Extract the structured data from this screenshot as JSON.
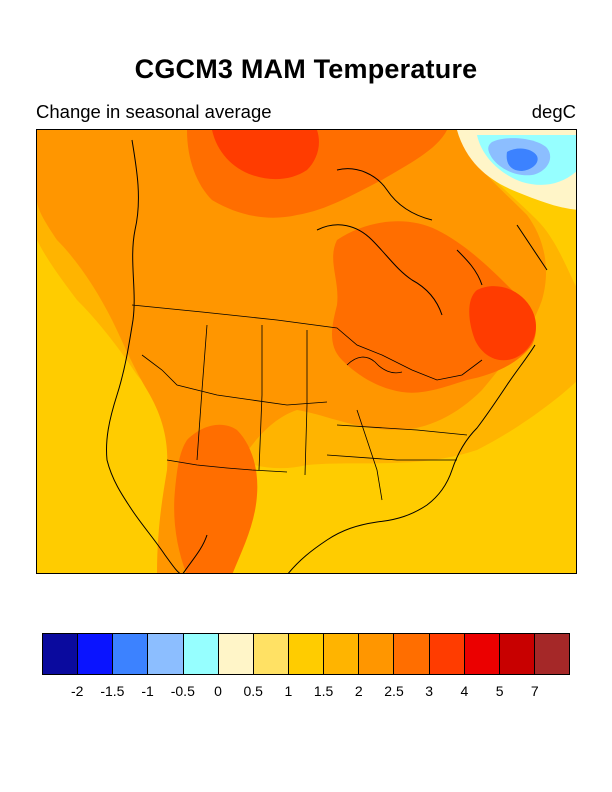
{
  "title": "CGCM3 MAM Temperature",
  "subtitle_left": "Change in seasonal average",
  "subtitle_right": "degC",
  "map": {
    "region": "North America",
    "field": "Change in seasonal average temperature (MAM)",
    "units": "degC"
  },
  "colorbar": {
    "colors": [
      "#0a0a9e",
      "#0a14ff",
      "#3c82ff",
      "#8cbeff",
      "#96ffff",
      "#fff5c8",
      "#ffe164",
      "#ffcc00",
      "#ffb400",
      "#ff9600",
      "#ff6e00",
      "#ff3c00",
      "#eb0000",
      "#c80000",
      "#a52828"
    ],
    "labels": [
      "-2",
      "-1.5",
      "-1",
      "-0.5",
      "0",
      "0.5",
      "1",
      "1.5",
      "2",
      "2.5",
      "3",
      "4",
      "5",
      "7"
    ]
  }
}
